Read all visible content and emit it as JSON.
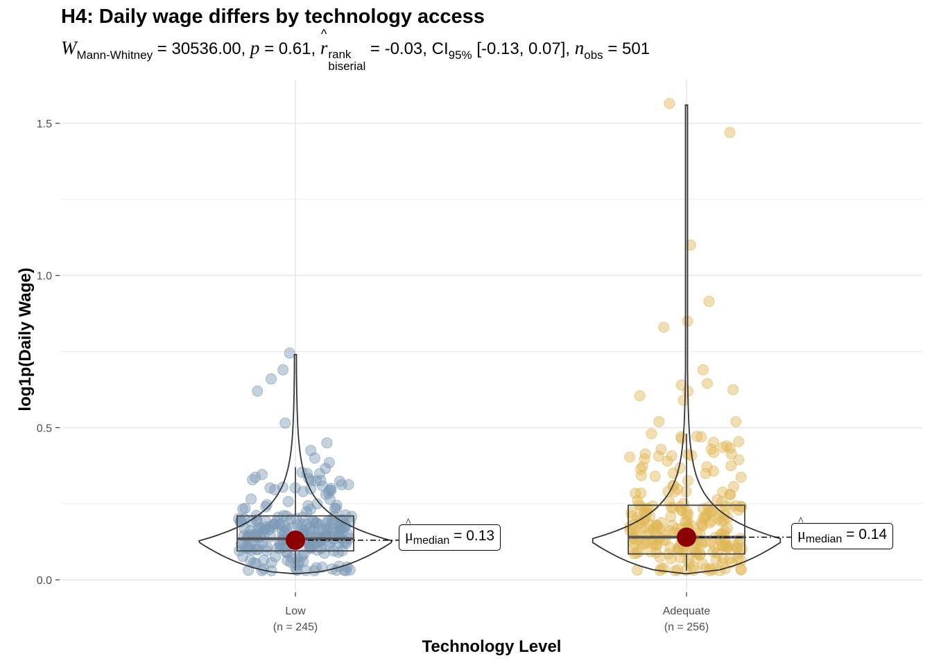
{
  "chart_data": {
    "type": "violin-box-scatter",
    "title": "H4: Daily wage differs by technology access",
    "subtitle": {
      "statistic_symbol": "W",
      "statistic_subscript": "Mann-Whitney",
      "statistic_value": "30536.00",
      "p_symbol": "p",
      "p_value": "0.61",
      "effect_symbol": "r",
      "effect_superscript": "rank",
      "effect_subscript": "biserial",
      "effect_value": "-0.03",
      "ci_label": "CI",
      "ci_subscript": "95%",
      "ci_value": "[-0.13, 0.07]",
      "n_symbol": "n",
      "n_subscript": "obs",
      "n_value": "501"
    },
    "xlabel": "Technology Level",
    "ylabel": "log1p(Daily Wage)",
    "ylim": [
      -0.02,
      1.62
    ],
    "yticks": [
      0.0,
      0.5,
      1.0,
      1.5
    ],
    "ytick_labels": [
      "0.0",
      "0.5",
      "1.0",
      "1.5"
    ],
    "grid": true,
    "groups": [
      {
        "name": "Low",
        "n_label": "(n = 245)",
        "n": 245,
        "color": "#7c9ab5",
        "median": 0.13,
        "median_label": "0.13",
        "box": {
          "q1": 0.095,
          "median": 0.135,
          "q3": 0.21,
          "whisker_low": 0.03,
          "whisker_high": 0.37
        },
        "violin_max": 0.74,
        "violin_min": 0.02,
        "outliers": [
          0.69,
          0.745,
          0.66,
          0.62,
          0.515,
          0.45,
          0.425,
          0.4,
          0.385
        ]
      },
      {
        "name": "Adequate",
        "n_label": "(n = 256)",
        "n": 256,
        "color": "#e0b757",
        "median": 0.14,
        "median_label": "0.14",
        "box": {
          "q1": 0.085,
          "median": 0.14,
          "q3": 0.245,
          "whisker_low": 0.03,
          "whisker_high": 0.48
        },
        "violin_max": 1.56,
        "violin_min": 0.02,
        "outliers": [
          1.565,
          1.47,
          1.1,
          0.915,
          0.85,
          0.83,
          0.69,
          0.645,
          0.64,
          0.625,
          0.62,
          0.605,
          0.59,
          0.52,
          0.52,
          0.47
        ]
      }
    ],
    "median_marker_color": "#8b0000",
    "median_label_prefix": "median"
  }
}
